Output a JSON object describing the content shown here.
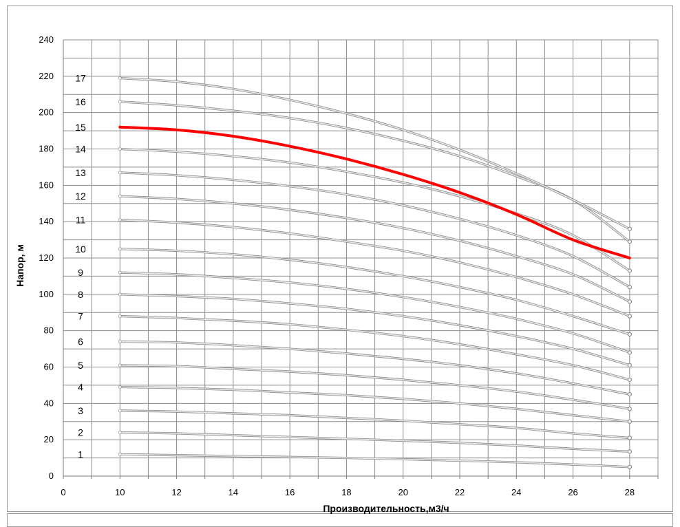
{
  "chart_data": {
    "type": "line",
    "title": "",
    "xlabel": "Производительность,м3/ч",
    "ylabel": "Напор, м",
    "xlim": [
      8,
      29
    ],
    "ylim": [
      0,
      240
    ],
    "x_ticks": [
      "0",
      "10",
      "12",
      "14",
      "16",
      "18",
      "20",
      "22",
      "24",
      "26",
      "28"
    ],
    "y_ticks": [
      "0",
      "20",
      "40",
      "60",
      "80",
      "100",
      "120",
      "140",
      "160",
      "180",
      "200",
      "220",
      "240"
    ],
    "grid": true,
    "legend": "none",
    "x": [
      10,
      12,
      14,
      16,
      18,
      20,
      22,
      24,
      26,
      28
    ],
    "series": [
      {
        "name": "1",
        "color": "#bdbdbd",
        "values": [
          12,
          11.5,
          11,
          10.5,
          10,
          9.3,
          8.5,
          7.6,
          6.4,
          5
        ]
      },
      {
        "name": "2",
        "color": "#bdbdbd",
        "values": [
          24,
          23.5,
          22.5,
          21.5,
          20.5,
          19.5,
          18.3,
          16.8,
          15,
          13.5
        ]
      },
      {
        "name": "3",
        "color": "#bdbdbd",
        "values": [
          36,
          35.5,
          34.5,
          33.5,
          32,
          30.5,
          28.5,
          26.5,
          23.5,
          21
        ]
      },
      {
        "name": "4",
        "color": "#bdbdbd",
        "values": [
          49,
          48.5,
          47.5,
          46,
          44.5,
          42.5,
          40,
          37,
          33.5,
          30
        ]
      },
      {
        "name": "5",
        "color": "#bdbdbd",
        "values": [
          61,
          60.5,
          59,
          57.5,
          55.5,
          53,
          50,
          46.5,
          42,
          37
        ]
      },
      {
        "name": "6",
        "color": "#bdbdbd",
        "values": [
          74,
          73.5,
          72,
          70,
          67.5,
          64.5,
          61,
          56.5,
          51,
          45
        ]
      },
      {
        "name": "7",
        "color": "#bdbdbd",
        "values": [
          88,
          87,
          85.5,
          83.5,
          80.5,
          77,
          72.5,
          67,
          61,
          53
        ]
      },
      {
        "name": "8",
        "color": "#bdbdbd",
        "values": [
          100,
          99,
          97.5,
          95,
          92,
          88,
          83,
          77,
          70,
          61
        ]
      },
      {
        "name": "9",
        "color": "#bdbdbd",
        "values": [
          112,
          111,
          109,
          106.5,
          103,
          98.5,
          93,
          86.5,
          78.5,
          68
        ]
      },
      {
        "name": "10",
        "color": "#bdbdbd",
        "values": [
          125,
          124,
          122,
          119,
          115,
          110,
          104,
          97,
          88,
          78
        ]
      },
      {
        "name": "11",
        "color": "#bdbdbd",
        "values": [
          141,
          139.5,
          137,
          133.5,
          129,
          124,
          117.5,
          109.5,
          100,
          88
        ]
      },
      {
        "name": "12",
        "color": "#bdbdbd",
        "values": [
          154,
          152.5,
          150,
          146.5,
          142,
          136.5,
          129.5,
          121,
          111,
          96
        ]
      },
      {
        "name": "13",
        "color": "#bdbdbd",
        "values": [
          167,
          165.5,
          163,
          159.5,
          155,
          149,
          141.5,
          132.5,
          121,
          104
        ]
      },
      {
        "name": "14",
        "color": "#bdbdbd",
        "values": [
          180,
          178.5,
          176,
          172.5,
          167.5,
          161.5,
          154,
          144.5,
          132.5,
          113
        ]
      },
      {
        "name": "15",
        "color": "#ff0000",
        "values": [
          192,
          190.5,
          187,
          181.5,
          174.5,
          166,
          156,
          144,
          130,
          120
        ]
      },
      {
        "name": "16",
        "color": "#bdbdbd",
        "values": [
          206,
          204,
          201,
          197,
          191.5,
          184.5,
          176,
          165,
          152,
          129
        ]
      },
      {
        "name": "17",
        "color": "#bdbdbd",
        "values": [
          219,
          217,
          213,
          207,
          199.5,
          190.5,
          179.5,
          166.5,
          152,
          136
        ]
      }
    ]
  }
}
